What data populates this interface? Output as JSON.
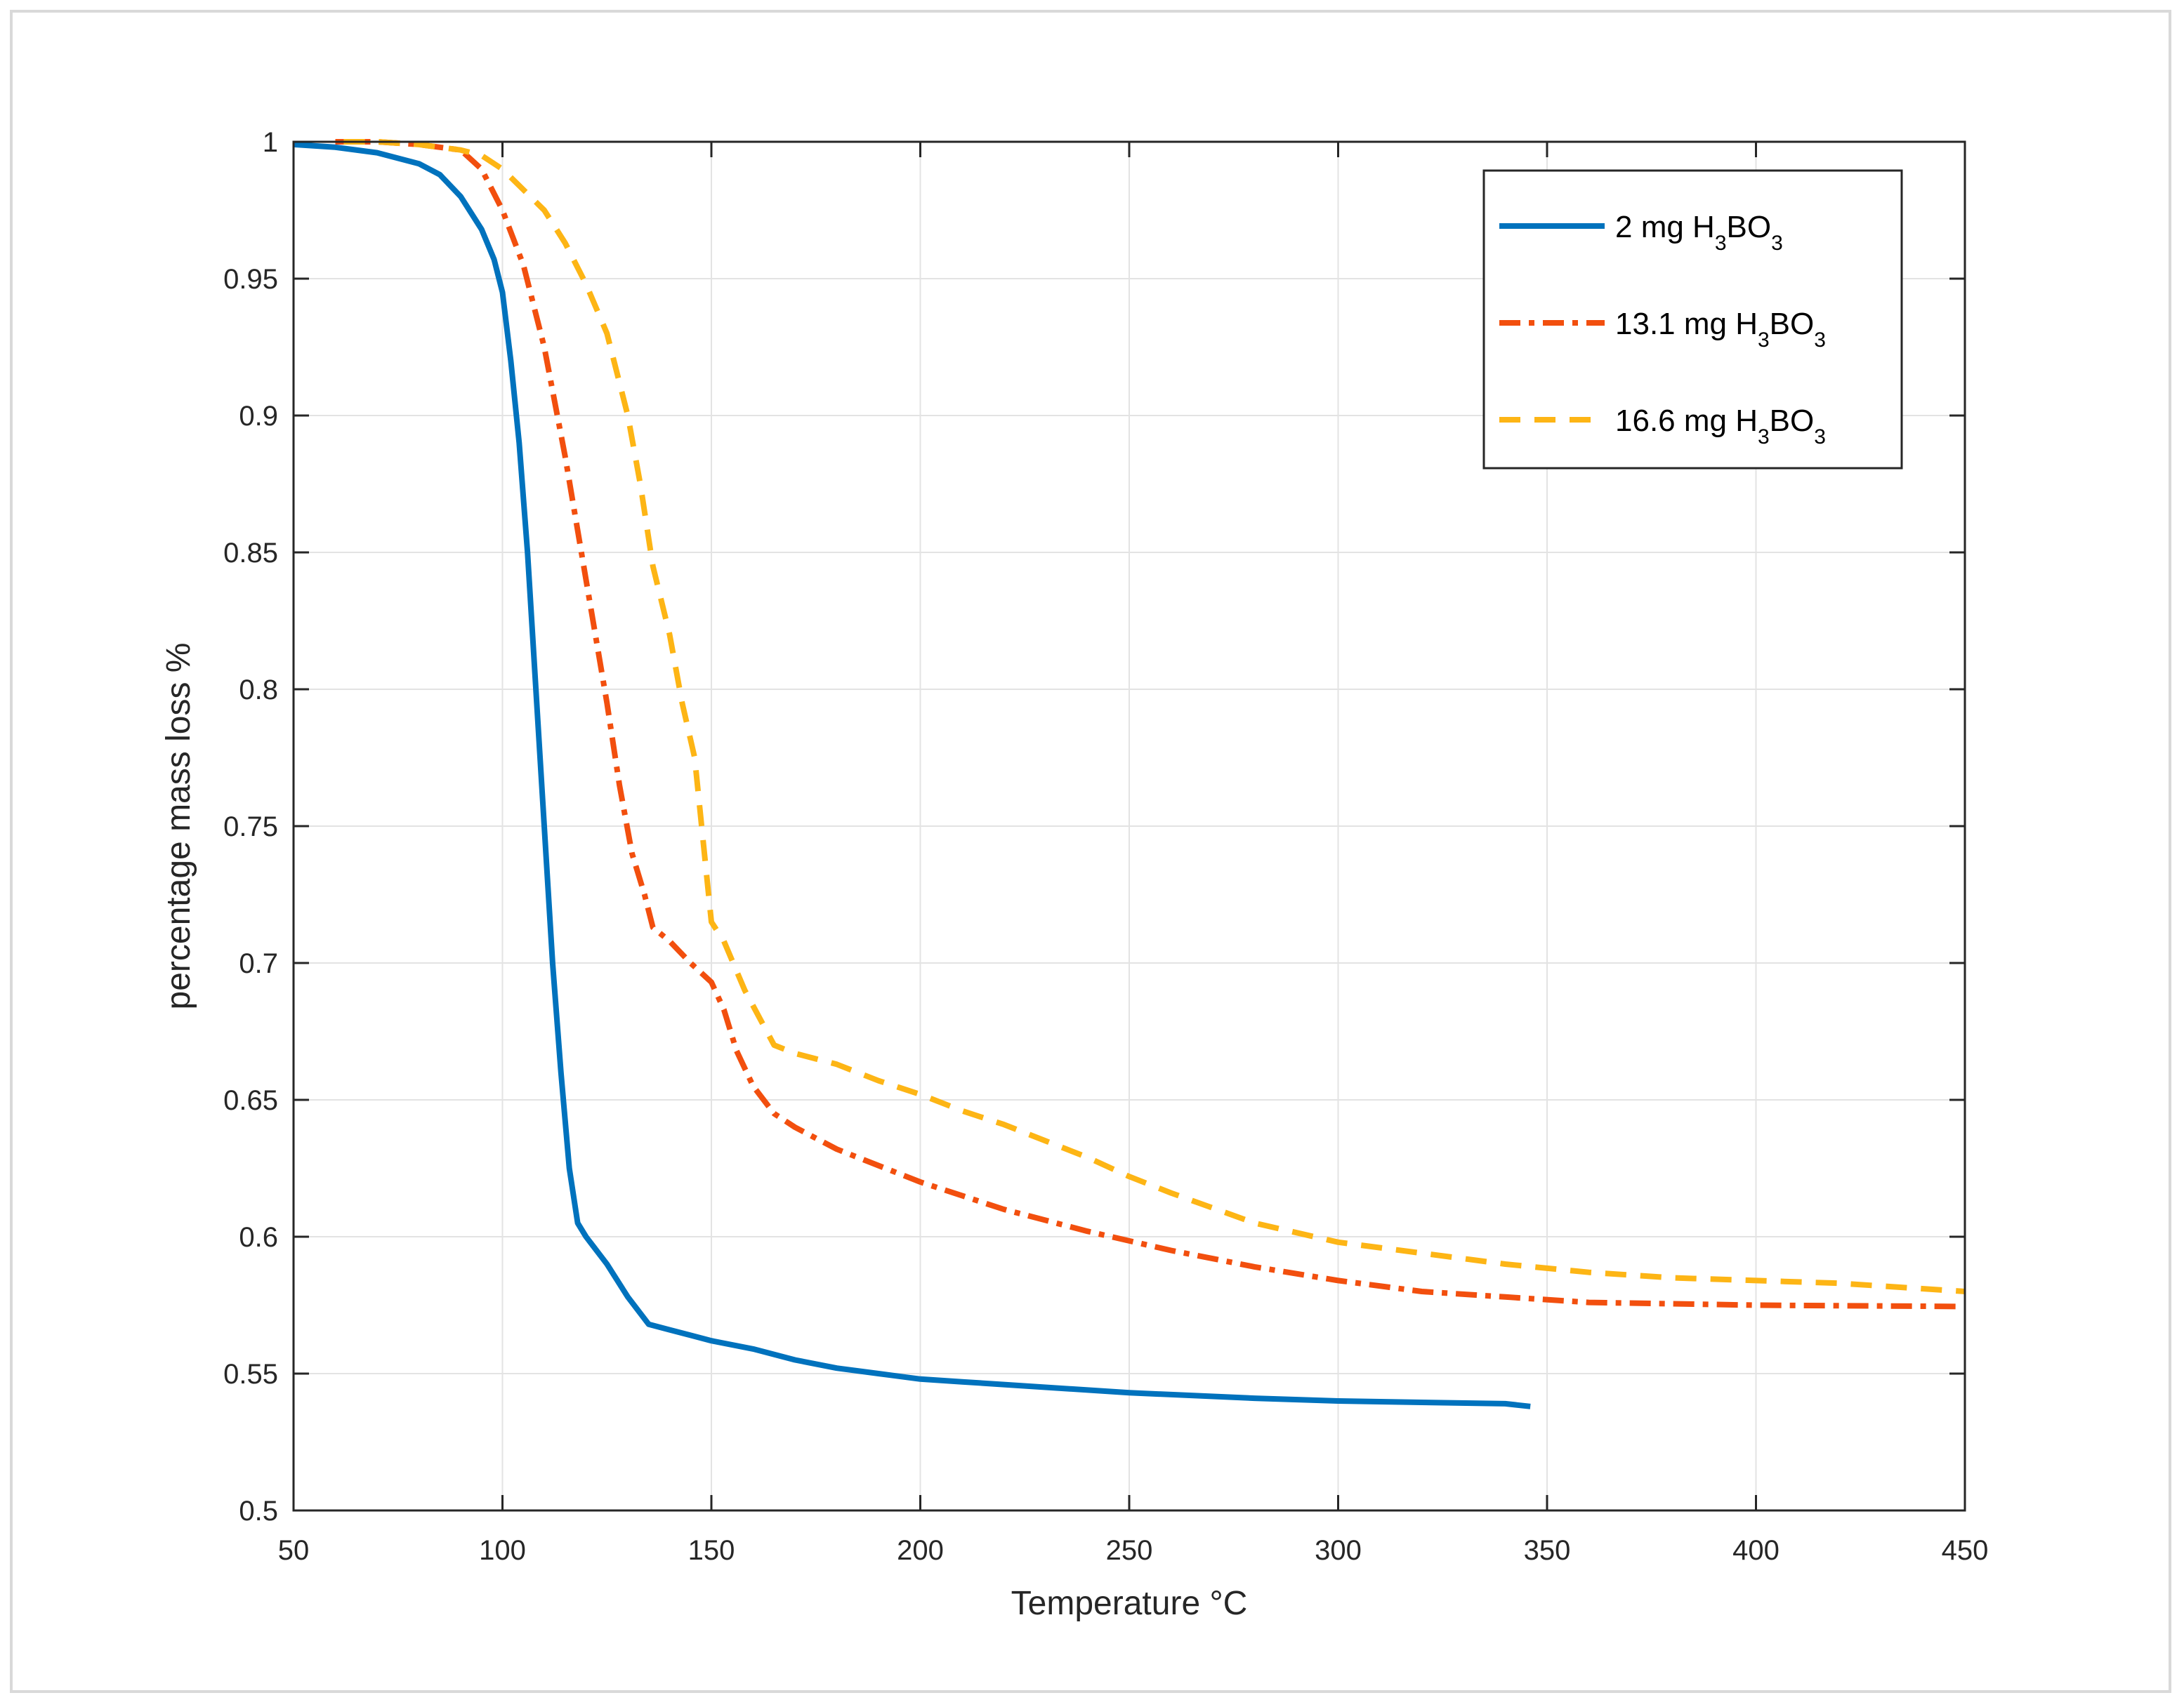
{
  "chart_data": {
    "type": "line",
    "title": "",
    "xlabel": "Temperature °C",
    "ylabel": "percentage mass loss %",
    "xlim": [
      50,
      450
    ],
    "ylim": [
      0.5,
      1
    ],
    "xticks": [
      50,
      100,
      150,
      200,
      250,
      300,
      350,
      400,
      450
    ],
    "yticks": [
      0.5,
      0.55,
      0.6,
      0.65,
      0.7,
      0.75,
      0.8,
      0.85,
      0.9,
      0.95,
      1
    ],
    "xtick_labels": [
      "50",
      "100",
      "150",
      "200",
      "250",
      "300",
      "350",
      "400",
      "450"
    ],
    "ytick_labels": [
      "0.5",
      "0.55",
      "0.6",
      "0.65",
      "0.7",
      "0.75",
      "0.8",
      "0.85",
      "0.9",
      "0.95",
      "1"
    ],
    "grid": true,
    "legend_position": "top-right",
    "series": [
      {
        "name": "2 mg H3BO3",
        "legend_parts": {
          "prefix": "2 mg H",
          "sub1": "3",
          "mid": "BO",
          "sub2": "3"
        },
        "color": "#0072BD",
        "dash": "solid",
        "x": [
          50,
          60,
          70,
          80,
          85,
          90,
          95,
          98,
          100,
          102,
          104,
          106,
          108,
          110,
          112,
          114,
          116,
          118,
          120,
          122,
          125,
          130,
          135,
          140,
          145,
          150,
          160,
          170,
          180,
          190,
          200,
          210,
          220,
          250,
          280,
          300,
          320,
          340,
          346
        ],
        "y": [
          0.999,
          0.998,
          0.996,
          0.992,
          0.988,
          0.98,
          0.968,
          0.957,
          0.945,
          0.92,
          0.89,
          0.85,
          0.8,
          0.75,
          0.7,
          0.66,
          0.625,
          0.605,
          0.6,
          0.596,
          0.59,
          0.578,
          0.568,
          0.566,
          0.564,
          0.562,
          0.559,
          0.555,
          0.552,
          0.55,
          0.548,
          0.547,
          0.546,
          0.543,
          0.541,
          0.54,
          0.5395,
          0.539,
          0.538
        ]
      },
      {
        "name": "13.1 mg H3BO3",
        "legend_parts": {
          "prefix": "13.1 mg H",
          "sub1": "3",
          "mid": "BO",
          "sub2": "3"
        },
        "color": "#F24F0E",
        "dash": "dashdot",
        "x": [
          60,
          70,
          80,
          90,
          95,
          100,
          105,
          110,
          115,
          120,
          125,
          128,
          131,
          134,
          136,
          140,
          145,
          150,
          153,
          156,
          160,
          165,
          170,
          180,
          190,
          200,
          220,
          240,
          260,
          280,
          300,
          320,
          340,
          360,
          380,
          400,
          420,
          450
        ],
        "y": [
          1.0,
          1.0,
          0.999,
          0.997,
          0.99,
          0.975,
          0.955,
          0.925,
          0.885,
          0.84,
          0.795,
          0.765,
          0.74,
          0.725,
          0.713,
          0.708,
          0.7,
          0.693,
          0.683,
          0.668,
          0.655,
          0.645,
          0.64,
          0.632,
          0.626,
          0.62,
          0.61,
          0.602,
          0.595,
          0.589,
          0.584,
          0.58,
          0.578,
          0.576,
          0.5755,
          0.575,
          0.5748,
          0.5745
        ]
      },
      {
        "name": "16.6 mg H3BO3",
        "legend_parts": {
          "prefix": "16.6 mg H",
          "sub1": "3",
          "mid": "BO",
          "sub2": "3"
        },
        "color": "#FDB515",
        "dash": "dashed",
        "x": [
          62,
          70,
          80,
          90,
          95,
          100,
          110,
          115,
          120,
          125,
          130,
          133,
          136,
          140,
          143,
          146,
          148,
          150,
          153,
          158,
          165,
          170,
          180,
          190,
          200,
          210,
          220,
          230,
          240,
          250,
          260,
          280,
          300,
          320,
          340,
          360,
          380,
          400,
          420,
          450
        ],
        "y": [
          1.0,
          1.0,
          0.999,
          0.997,
          0.995,
          0.99,
          0.975,
          0.963,
          0.948,
          0.93,
          0.9,
          0.875,
          0.845,
          0.82,
          0.795,
          0.775,
          0.745,
          0.715,
          0.708,
          0.69,
          0.67,
          0.667,
          0.663,
          0.657,
          0.652,
          0.646,
          0.641,
          0.635,
          0.629,
          0.622,
          0.616,
          0.605,
          0.598,
          0.594,
          0.59,
          0.587,
          0.585,
          0.584,
          0.583,
          0.58
        ]
      }
    ]
  }
}
